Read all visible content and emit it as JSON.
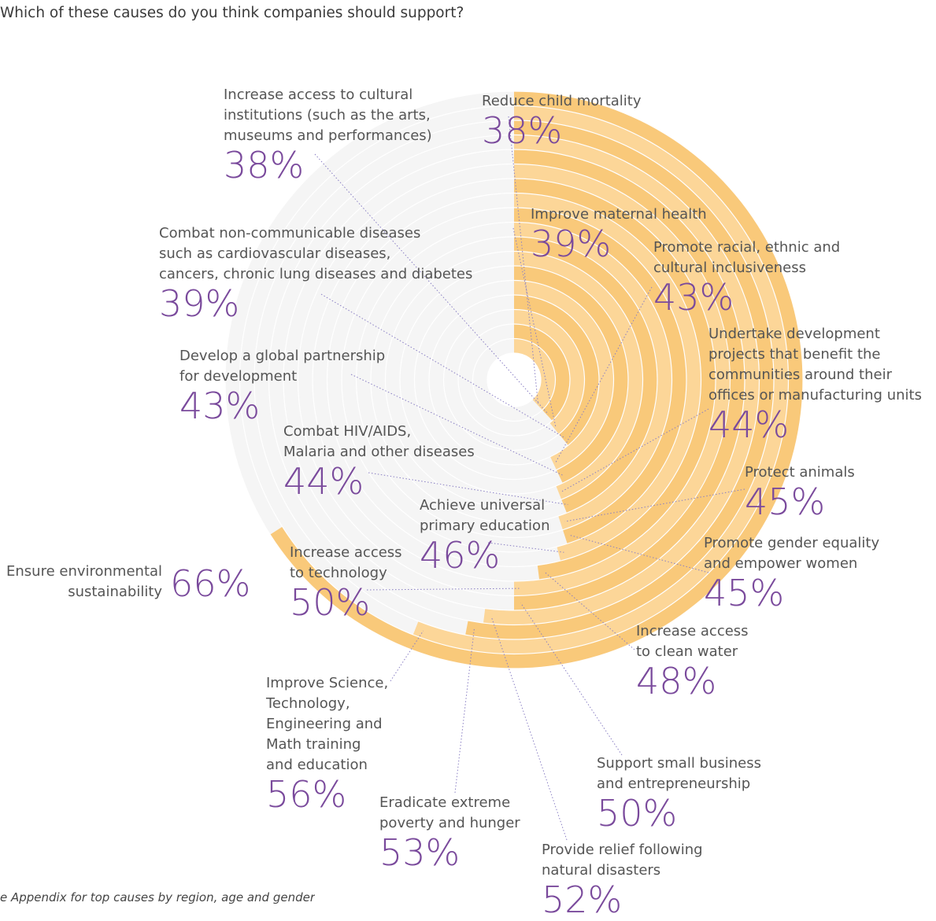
{
  "question": "Which of these causes do you think companies should support?",
  "footnote": "See Appendix for top causes by region, age and gender",
  "colors": {
    "background_ring": "#f5f5f5",
    "ring_separator": "#ffffff",
    "bar_light": "#fcd698",
    "bar_dark": "#f9c97a",
    "value_text": "#7a4a9c",
    "label_text": "#555555",
    "leader_line": "#8a7fc4"
  },
  "chart_data": {
    "type": "radial-bar",
    "title": "Which of these causes do you think companies should support?",
    "unit": "%",
    "max": 100,
    "categories": [
      "Reduce child mortality",
      "Increase access to cultural institutions (such as the arts, museums and performances)",
      "Improve maternal health",
      "Combat non-communicable diseases such as cardiovascular diseases, cancers, chronic lung diseases and diabetes",
      "Promote racial, ethnic and cultural inclusiveness",
      "Develop a global partnership for development",
      "Undertake development projects that benefit the communities around their offices or manufacturing units",
      "Combat HIV/AIDS, Malaria and other diseases",
      "Protect animals",
      "Promote gender equality and empower women",
      "Achieve universal primary education",
      "Increase access to clean water",
      "Increase access to technology",
      "Support small business and entrepreneurship",
      "Provide relief following natural disasters",
      "Eradicate extreme poverty and hunger",
      "Improve Science, Technology, Engineering and Math training and education",
      "Ensure environmental sustainability"
    ],
    "values": [
      38,
      38,
      39,
      39,
      43,
      43,
      44,
      44,
      45,
      45,
      46,
      48,
      50,
      50,
      52,
      53,
      56,
      66
    ],
    "labels": [
      {
        "text": "Reduce child mortality",
        "value": "38%"
      },
      {
        "text": "Increase access to cultural\ninstitutions (such as the arts,\nmuseums and performances)",
        "value": "38%"
      },
      {
        "text": "Improve maternal health",
        "value": "39%"
      },
      {
        "text": "Combat non-communicable diseases\nsuch as cardiovascular diseases,\ncancers, chronic lung diseases and diabetes",
        "value": "39%"
      },
      {
        "text": "Promote racial, ethnic and\ncultural inclusiveness",
        "value": "43%"
      },
      {
        "text": "Develop a global partnership\nfor development",
        "value": "43%"
      },
      {
        "text": "Undertake development\nprojects that benefit the\ncommunities around their\noffices or manufacturing units",
        "value": "44%"
      },
      {
        "text": "Combat HIV/AIDS,\nMalaria and other diseases",
        "value": "44%"
      },
      {
        "text": "Protect animals",
        "value": "45%"
      },
      {
        "text": "Promote gender equality\nand empower women",
        "value": "45%"
      },
      {
        "text": "Achieve universal\nprimary education",
        "value": "46%"
      },
      {
        "text": "Increase access\nto clean water",
        "value": "48%"
      },
      {
        "text": "Increase access\nto technology",
        "value": "50%"
      },
      {
        "text": "Support small business\nand entrepreneurship",
        "value": "50%"
      },
      {
        "text": "Provide relief following\nnatural disasters",
        "value": "52%"
      },
      {
        "text": "Eradicate extreme\npoverty and hunger",
        "value": "53%"
      },
      {
        "text": "Improve Science,\nTechnology,\nEngineering and\nMath training\nand education",
        "value": "56%"
      },
      {
        "text": "Ensure environmental\nsustainability",
        "value": "66%"
      }
    ]
  }
}
